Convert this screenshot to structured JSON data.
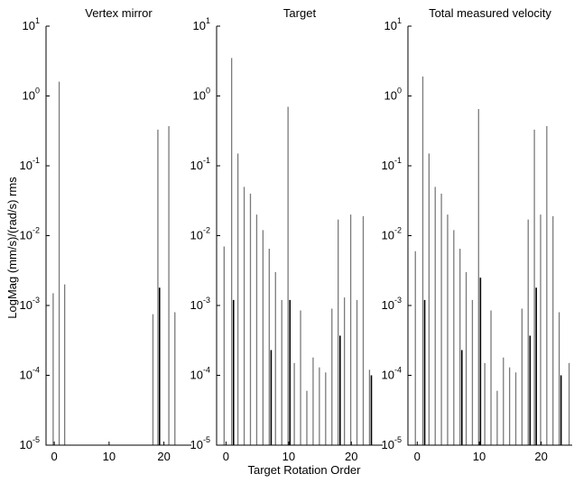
{
  "figure": {
    "ylabel": "LogMag (mm/s)/(rad/s) rms",
    "xlabel": "Target Rotation Order"
  },
  "chart_data": [
    {
      "type": "bar",
      "title": "Vertex mirror",
      "y_scale": "log",
      "ylim": [
        1e-05,
        10
      ],
      "xlim": [
        -1.5,
        25
      ],
      "xticks": [
        0,
        10,
        20
      ],
      "ytick_labels": [
        {
          "base": "10",
          "exp": "1"
        },
        {
          "base": "10",
          "exp": "0"
        },
        {
          "base": "10",
          "exp": "-1"
        },
        {
          "base": "10",
          "exp": "-2"
        },
        {
          "base": "10",
          "exp": "-3"
        },
        {
          "base": "10",
          "exp": "-4"
        },
        {
          "base": "10",
          "exp": "-5"
        }
      ],
      "series": [
        {
          "values": [
            [
              -0.2,
              0.0015
            ],
            [
              0.9,
              1.6
            ],
            [
              1.9,
              0.002
            ],
            [
              18,
              0.00075
            ],
            [
              18.9,
              0.33
            ],
            [
              20.9,
              0.37
            ],
            [
              22,
              0.0008
            ]
          ],
          "color": "#7a7a7a"
        },
        {
          "values": [
            [
              19.2,
              0.0018
            ]
          ],
          "color": "#000000"
        }
      ]
    },
    {
      "type": "bar",
      "title": "Target",
      "y_scale": "log",
      "ylim": [
        1e-05,
        10
      ],
      "xlim": [
        -1.5,
        25
      ],
      "xticks": [
        0,
        10,
        20
      ],
      "ytick_labels": [
        {
          "base": "10",
          "exp": "1"
        },
        {
          "base": "10",
          "exp": "0"
        },
        {
          "base": "10",
          "exp": "-1"
        },
        {
          "base": "10",
          "exp": "-2"
        },
        {
          "base": "10",
          "exp": "-3"
        },
        {
          "base": "10",
          "exp": "-4"
        },
        {
          "base": "10",
          "exp": "-5"
        }
      ],
      "series": [
        {
          "values": [
            [
              -0.3,
              0.007
            ],
            [
              0.9,
              3.5
            ],
            [
              1.9,
              0.15
            ],
            [
              2.9,
              0.05
            ],
            [
              3.9,
              0.04
            ],
            [
              4.9,
              0.02
            ],
            [
              5.9,
              0.012
            ],
            [
              6.9,
              0.0065
            ],
            [
              7.9,
              0.003
            ],
            [
              8.9,
              0.0012
            ],
            [
              9.9,
              0.7
            ],
            [
              10.9,
              0.00015
            ],
            [
              11.9,
              0.00085
            ],
            [
              12.9,
              6e-05
            ],
            [
              13.9,
              0.00018
            ],
            [
              14.9,
              0.00013
            ],
            [
              15.9,
              0.00011
            ],
            [
              16.9,
              0.0009
            ],
            [
              17.9,
              0.017
            ],
            [
              18.9,
              0.0013
            ],
            [
              19.9,
              0.02
            ],
            [
              20.9,
              0.0012
            ],
            [
              21.9,
              0.019
            ],
            [
              22.9,
              0.00012
            ]
          ],
          "color": "#7a7a7a"
        },
        {
          "values": [
            [
              1.2,
              0.0012
            ],
            [
              7.2,
              0.00023
            ],
            [
              10.2,
              0.0012
            ],
            [
              18.2,
              0.00037
            ],
            [
              23.2,
              0.0001
            ]
          ],
          "color": "#000000"
        }
      ]
    },
    {
      "type": "bar",
      "title": "Total measured velocity",
      "y_scale": "log",
      "ylim": [
        1e-05,
        10
      ],
      "xlim": [
        -1.5,
        25
      ],
      "xticks": [
        0,
        10,
        20
      ],
      "ytick_labels": [
        {
          "base": "10",
          "exp": "1"
        },
        {
          "base": "10",
          "exp": "0"
        },
        {
          "base": "10",
          "exp": "-1"
        },
        {
          "base": "10",
          "exp": "-2"
        },
        {
          "base": "10",
          "exp": "-3"
        },
        {
          "base": "10",
          "exp": "-4"
        },
        {
          "base": "10",
          "exp": "-5"
        }
      ],
      "series": [
        {
          "values": [
            [
              -0.3,
              0.006
            ],
            [
              0.9,
              1.9
            ],
            [
              1.9,
              0.15
            ],
            [
              2.9,
              0.05
            ],
            [
              3.9,
              0.04
            ],
            [
              4.9,
              0.02
            ],
            [
              5.9,
              0.012
            ],
            [
              6.9,
              0.0065
            ],
            [
              7.9,
              0.003
            ],
            [
              8.9,
              0.0012
            ],
            [
              9.9,
              0.65
            ],
            [
              10.9,
              0.00015
            ],
            [
              11.9,
              0.00085
            ],
            [
              12.9,
              6e-05
            ],
            [
              13.9,
              0.00018
            ],
            [
              14.9,
              0.00013
            ],
            [
              15.9,
              0.00011
            ],
            [
              16.9,
              0.0009
            ],
            [
              17.9,
              0.017
            ],
            [
              18.9,
              0.33
            ],
            [
              19.9,
              0.02
            ],
            [
              20.9,
              0.37
            ],
            [
              21.9,
              0.019
            ],
            [
              22.9,
              0.0008
            ],
            [
              24.5,
              0.00015
            ]
          ],
          "color": "#7a7a7a"
        },
        {
          "values": [
            [
              1.2,
              0.0012
            ],
            [
              7.2,
              0.00023
            ],
            [
              10.2,
              0.0025
            ],
            [
              18.2,
              0.00037
            ],
            [
              19.2,
              0.0018
            ],
            [
              23.2,
              0.0001
            ]
          ],
          "color": "#000000"
        }
      ]
    }
  ]
}
